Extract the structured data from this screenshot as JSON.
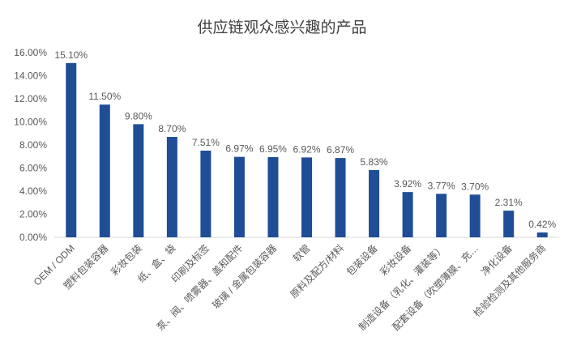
{
  "chart_data": {
    "type": "bar",
    "title": "供应链观众感兴趣的产品",
    "categories": [
      "OEM / ODM",
      "塑料包装容器",
      "彩妆包装",
      "纸、盒、袋",
      "印刷及标签",
      "泵、阀、喷雾器、盖和配件",
      "玻璃 / 金属包装容器",
      "软管",
      "原料及配方/材料",
      "包装设备",
      "彩妆设备",
      "制造设备（乳化、灌装等）",
      "配套设备（吹塑薄膜、充…",
      "净化设备",
      "检验检测及其他服务商"
    ],
    "values": [
      15.1,
      11.5,
      9.8,
      8.7,
      7.51,
      6.97,
      6.95,
      6.92,
      6.87,
      5.83,
      3.92,
      3.77,
      3.7,
      2.31,
      0.42
    ],
    "data_labels": [
      "15.10%",
      "11.50%",
      "9.80%",
      "8.70%",
      "7.51%",
      "6.97%",
      "6.95%",
      "6.92%",
      "6.87%",
      "5.83%",
      "3.92%",
      "3.77%",
      "3.70%",
      "2.31%",
      "0.42%"
    ],
    "yticks": [
      "0.00%",
      "2.00%",
      "4.00%",
      "6.00%",
      "8.00%",
      "10.00%",
      "12.00%",
      "14.00%",
      "16.00%"
    ],
    "ylim": [
      0,
      16
    ],
    "xlabel": "",
    "ylabel": "",
    "grid": false,
    "legend": "none",
    "colors": {
      "bar": "#1F4E96",
      "axis": "#d9d9d9",
      "text": "#595959"
    }
  }
}
